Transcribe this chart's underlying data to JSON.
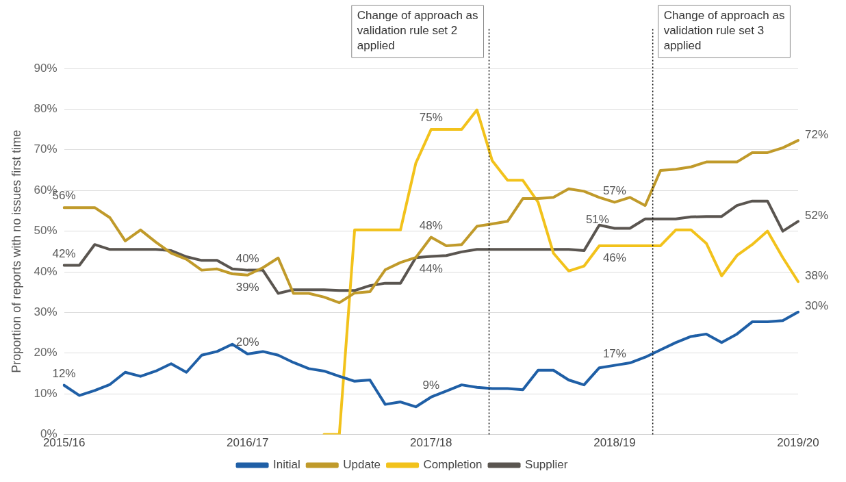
{
  "chart_data": {
    "type": "line",
    "ylabel": "Proportion of reports with no issues first time",
    "categories": [
      "2015/16",
      null,
      null,
      null,
      null,
      null,
      null,
      null,
      null,
      null,
      null,
      null,
      "2016/17",
      null,
      null,
      null,
      null,
      null,
      null,
      null,
      null,
      null,
      null,
      null,
      "2017/18",
      null,
      null,
      null,
      null,
      null,
      null,
      null,
      null,
      null,
      null,
      null,
      "2018/19",
      null,
      null,
      null,
      null,
      null,
      null,
      null,
      null,
      null,
      null,
      null,
      "2019/20"
    ],
    "ylim": [
      0,
      90
    ],
    "yticks": [
      {
        "value": 0,
        "label": "0%"
      },
      {
        "value": 10,
        "label": "10%"
      },
      {
        "value": 20,
        "label": "20%"
      },
      {
        "value": 30,
        "label": "30%"
      },
      {
        "value": 40,
        "label": "40%"
      },
      {
        "value": 50,
        "label": "50%"
      },
      {
        "value": 60,
        "label": "60%"
      },
      {
        "value": 70,
        "label": "70%"
      },
      {
        "value": 80,
        "label": "80%"
      },
      {
        "value": 90,
        "label": "90%"
      }
    ],
    "grid": "y",
    "legend": "bottom",
    "marker": "none",
    "line_style": "solid",
    "series": [
      {
        "name": "Initial",
        "color": "#1f5fa6",
        "values": [
          12.1,
          9.6,
          10.8,
          12.3,
          15.3,
          14.3,
          15.6,
          17.4,
          15.3,
          19.5,
          20.4,
          22.2,
          19.8,
          20.4,
          19.5,
          17.7,
          16.2,
          15.6,
          14.3,
          13.1,
          13.4,
          7.4,
          8.0,
          6.8,
          9.2,
          10.7,
          12.2,
          11.6,
          11.3,
          11.3,
          11.0,
          15.8,
          15.8,
          13.4,
          12.2,
          16.4,
          17.0,
          17.6,
          19.0,
          20.8,
          22.6,
          24.1,
          24.7,
          22.6,
          24.7,
          27.7,
          27.7,
          28.0,
          30.1
        ],
        "value_labels": [
          "12%",
          null,
          null,
          null,
          null,
          null,
          null,
          null,
          null,
          null,
          null,
          null,
          "20%",
          null,
          null,
          null,
          null,
          null,
          null,
          null,
          null,
          null,
          null,
          null,
          "9%",
          null,
          null,
          null,
          null,
          null,
          null,
          null,
          null,
          null,
          null,
          null,
          "17%",
          null,
          null,
          null,
          null,
          null,
          null,
          null,
          null,
          null,
          null,
          null,
          "30%"
        ]
      },
      {
        "name": "Update",
        "color": "#c09a2a",
        "values": [
          55.8,
          55.8,
          55.8,
          53.3,
          47.6,
          50.3,
          47.3,
          44.6,
          43.1,
          40.4,
          40.7,
          39.5,
          39.2,
          41.0,
          43.4,
          34.7,
          34.7,
          33.8,
          32.4,
          34.8,
          35.1,
          40.5,
          42.3,
          43.5,
          48.5,
          46.4,
          46.7,
          51.2,
          51.8,
          52.4,
          58.0,
          58.0,
          58.3,
          60.4,
          59.8,
          58.3,
          57.1,
          58.3,
          56.3,
          64.9,
          65.2,
          65.8,
          67.0,
          67.0,
          67.0,
          69.3,
          69.3,
          70.5,
          72.3
        ],
        "value_labels": [
          "56%",
          null,
          null,
          null,
          null,
          null,
          null,
          null,
          null,
          null,
          null,
          null,
          "39%",
          null,
          null,
          null,
          null,
          null,
          null,
          null,
          null,
          null,
          null,
          null,
          "48%",
          null,
          null,
          null,
          null,
          null,
          null,
          null,
          null,
          null,
          null,
          null,
          "57%",
          null,
          null,
          null,
          null,
          null,
          null,
          null,
          null,
          null,
          null,
          null,
          "72%"
        ]
      },
      {
        "name": "Completion",
        "color": "#f2c21b",
        "values": [
          null,
          null,
          null,
          null,
          null,
          null,
          null,
          null,
          null,
          null,
          null,
          null,
          null,
          null,
          null,
          null,
          null,
          0,
          0,
          50.3,
          50.3,
          50.3,
          50.3,
          66.7,
          75.0,
          75.0,
          75.0,
          79.8,
          67.3,
          62.5,
          62.5,
          57.1,
          44.6,
          40.2,
          41.4,
          46.4,
          46.4,
          46.4,
          46.4,
          46.4,
          50.3,
          50.3,
          47.0,
          39.0,
          44.0,
          46.7,
          50.0,
          43.5,
          37.6
        ],
        "value_labels": [
          null,
          null,
          null,
          null,
          null,
          null,
          null,
          null,
          null,
          null,
          null,
          null,
          null,
          null,
          null,
          null,
          null,
          null,
          null,
          null,
          null,
          null,
          null,
          null,
          "75%",
          null,
          null,
          null,
          null,
          null,
          null,
          null,
          null,
          null,
          null,
          null,
          "46%",
          null,
          null,
          null,
          null,
          null,
          null,
          null,
          null,
          null,
          null,
          null,
          "38%"
        ]
      },
      {
        "name": "Supplier",
        "color": "#5a5550",
        "values": [
          41.6,
          41.6,
          46.7,
          45.5,
          45.5,
          45.5,
          45.5,
          45.2,
          43.7,
          42.8,
          42.8,
          40.7,
          40.4,
          40.4,
          34.7,
          35.6,
          35.6,
          35.6,
          35.4,
          35.4,
          36.6,
          37.2,
          37.2,
          43.5,
          43.8,
          44.0,
          44.9,
          45.5,
          45.5,
          45.5,
          45.5,
          45.5,
          45.5,
          45.5,
          45.2,
          51.5,
          50.7,
          50.7,
          53.0,
          53.0,
          53.0,
          53.5,
          53.6,
          53.6,
          56.3,
          57.4,
          57.4,
          50.0,
          52.4
        ],
        "value_labels": [
          "42%",
          null,
          null,
          null,
          null,
          null,
          null,
          null,
          null,
          null,
          null,
          null,
          "40%",
          null,
          null,
          null,
          null,
          null,
          null,
          null,
          null,
          null,
          null,
          null,
          "44%",
          null,
          null,
          null,
          null,
          null,
          null,
          null,
          null,
          null,
          null,
          null,
          "51%",
          null,
          null,
          null,
          null,
          null,
          null,
          null,
          null,
          null,
          null,
          null,
          "52%"
        ]
      }
    ],
    "annotations": [
      "Change of approach as validation rule set 2 applied",
      "Change of approach as validation rule set 3 applied"
    ]
  }
}
